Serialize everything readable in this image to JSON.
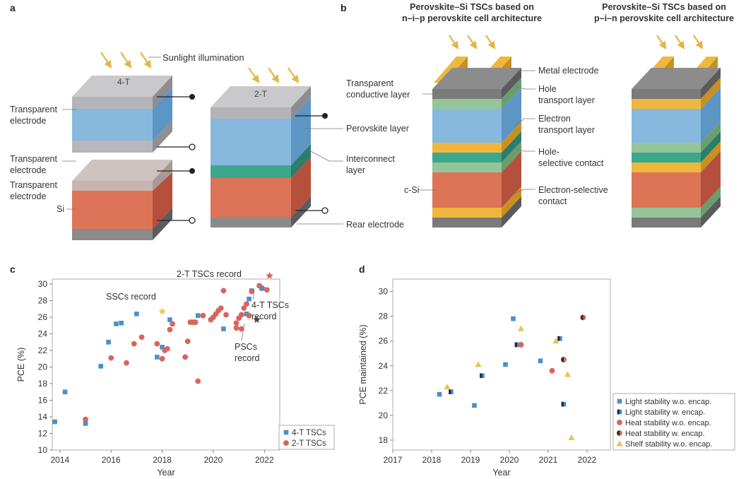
{
  "panels": {
    "a": {
      "letter": "a",
      "sunlight_label": "Sunlight illumination",
      "stack_4t_label": "4-T",
      "stack_2t_label": "2-T",
      "labels_left": [
        "Transparent",
        "electrode",
        "Transparent",
        "electrode",
        "Transparent",
        "electrode",
        "Si"
      ],
      "labels_mid": [
        "Perovskite layer",
        "Interconnect",
        "layer",
        "Rear electrode"
      ]
    },
    "b": {
      "letter": "b",
      "title_nip_line1": "Perovskite–Si TSCs based on",
      "title_nip_line2": "n–i–p perovskite cell architecture",
      "title_pin_line1": "Perovskite–Si TSCs based on",
      "title_pin_line2": "p–i–n perovskite cell architecture",
      "labels_left": [
        "Transparent",
        "conductive layer",
        "c-Si"
      ],
      "labels_right": [
        "Metal electrode",
        "Hole",
        "transport layer",
        "Electron",
        "transport layer",
        "Hole-",
        "selective contact",
        "Electron-selective",
        "contact"
      ]
    },
    "c": {
      "letter": "c",
      "annotations": {
        "ssc": "SSCs record",
        "two_t": "2-T TSCs record",
        "four_t_1": "4-T TSCs",
        "four_t_2": "record",
        "pscs_1": "PSCs",
        "pscs_2": "record"
      }
    },
    "d": {
      "letter": "d"
    }
  },
  "colors": {
    "blue": "#4b8fc9",
    "red": "#d9645c",
    "dark": "#3a2a2a",
    "yellow": "#e8c252",
    "perovskite": "#87b8de",
    "si": "#d97257",
    "teal": "#3ba88e",
    "green": "#96c49a",
    "orange": "#efb83c",
    "grey": "#9a9a9a"
  },
  "chart_data": [
    {
      "type": "scatter",
      "panel": "c",
      "title": "",
      "xlabel": "Year",
      "ylabel": "PCE (%)",
      "xlim": [
        2013.7,
        2022.6
      ],
      "ylim": [
        10,
        30.6
      ],
      "xticks": [
        2014,
        2016,
        2018,
        2020,
        2022
      ],
      "yticks": [
        10,
        12,
        14,
        16,
        18,
        20,
        22,
        24,
        26,
        28,
        30
      ],
      "legend": [
        "4-T TSCs",
        "2-T TSCs"
      ],
      "legend_position": "bottom-right",
      "series": [
        {
          "name": "4-T TSCs",
          "marker": "square",
          "points": [
            [
              2013.8,
              13.4
            ],
            [
              2014.2,
              17.0
            ],
            [
              2015.0,
              13.2
            ],
            [
              2015.6,
              20.1
            ],
            [
              2015.9,
              23.0
            ],
            [
              2016.2,
              25.2
            ],
            [
              2016.4,
              25.3
            ],
            [
              2017.0,
              26.4
            ],
            [
              2017.8,
              21.2
            ],
            [
              2018.0,
              22.4
            ],
            [
              2018.3,
              25.7
            ],
            [
              2019.4,
              26.2
            ],
            [
              2020.4,
              24.6
            ],
            [
              2021.3,
              26.4
            ],
            [
              2021.4,
              28.2
            ],
            [
              2021.5,
              29.2
            ],
            [
              2021.9,
              29.5
            ]
          ]
        },
        {
          "name": "2-T TSCs",
          "marker": "circle",
          "points": [
            [
              2015.0,
              13.7
            ],
            [
              2016.0,
              21.1
            ],
            [
              2016.6,
              20.5
            ],
            [
              2016.9,
              22.8
            ],
            [
              2017.2,
              23.6
            ],
            [
              2017.8,
              22.8
            ],
            [
              2018.0,
              21.0
            ],
            [
              2018.1,
              22.0
            ],
            [
              2018.2,
              22.2
            ],
            [
              2018.3,
              24.5
            ],
            [
              2018.4,
              25.2
            ],
            [
              2018.9,
              21.2
            ],
            [
              2019.0,
              23.1
            ],
            [
              2019.1,
              25.4
            ],
            [
              2019.2,
              25.4
            ],
            [
              2019.3,
              25.4
            ],
            [
              2019.4,
              18.3
            ],
            [
              2019.6,
              26.2
            ],
            [
              2019.9,
              25.7
            ],
            [
              2020.0,
              26.0
            ],
            [
              2020.1,
              26.4
            ],
            [
              2020.2,
              26.8
            ],
            [
              2020.3,
              27.1
            ],
            [
              2020.4,
              29.2
            ],
            [
              2020.5,
              26.3
            ],
            [
              2020.9,
              25.3
            ],
            [
              2020.9,
              24.7
            ],
            [
              2021.0,
              25.9
            ],
            [
              2021.1,
              24.6
            ],
            [
              2021.1,
              26.3
            ],
            [
              2021.2,
              27.1
            ],
            [
              2021.3,
              27.6
            ],
            [
              2021.4,
              26.2
            ],
            [
              2021.5,
              29.1
            ],
            [
              2021.8,
              29.8
            ],
            [
              2021.9,
              29.5
            ],
            [
              2022.1,
              29.3
            ]
          ]
        },
        {
          "name": "records",
          "marker": "star",
          "points": [
            [
              2018.0,
              26.7
            ],
            [
              2021.7,
              25.7
            ],
            [
              2021.9,
              29.5
            ],
            [
              2022.2,
              31.0
            ]
          ]
        }
      ]
    },
    {
      "type": "scatter",
      "panel": "d",
      "title": "",
      "xlabel": "Year",
      "ylabel": "PCE maintained (%)",
      "xlim": [
        2017,
        2022.6
      ],
      "ylim": [
        17.2,
        31
      ],
      "xticks": [
        2017,
        2018,
        2019,
        2020,
        2021,
        2022
      ],
      "yticks": [
        18,
        20,
        22,
        24,
        26,
        28,
        30
      ],
      "legend_position": "bottom-right",
      "series": [
        {
          "name": "Light stability w.o. encap.",
          "marker": "square",
          "points": [
            [
              2018.2,
              21.7
            ],
            [
              2019.1,
              20.8
            ],
            [
              2019.9,
              24.1
            ],
            [
              2020.1,
              27.8
            ],
            [
              2020.2,
              25.7
            ],
            [
              2020.8,
              24.4
            ]
          ]
        },
        {
          "name": "Light stability w. encap.",
          "marker": "square-dark",
          "points": [
            [
              2018.5,
              21.9
            ],
            [
              2019.3,
              23.2
            ],
            [
              2020.2,
              25.7
            ],
            [
              2021.3,
              26.2
            ],
            [
              2021.4,
              20.9
            ]
          ]
        },
        {
          "name": "Heat stability w.o. encap.",
          "marker": "circle",
          "points": [
            [
              2020.3,
              25.7
            ],
            [
              2021.1,
              23.6
            ],
            [
              2021.4,
              24.5
            ]
          ]
        },
        {
          "name": "Heat stability w. encap.",
          "marker": "circle-dark",
          "points": [
            [
              2021.4,
              24.5
            ],
            [
              2021.9,
              27.9
            ]
          ]
        },
        {
          "name": "Shelf stability w.o. encap.",
          "marker": "triangle",
          "points": [
            [
              2018.4,
              22.3
            ],
            [
              2019.2,
              24.1
            ],
            [
              2020.3,
              27.0
            ],
            [
              2021.2,
              26.0
            ],
            [
              2021.5,
              23.3
            ],
            [
              2021.6,
              18.2
            ]
          ]
        }
      ]
    }
  ]
}
